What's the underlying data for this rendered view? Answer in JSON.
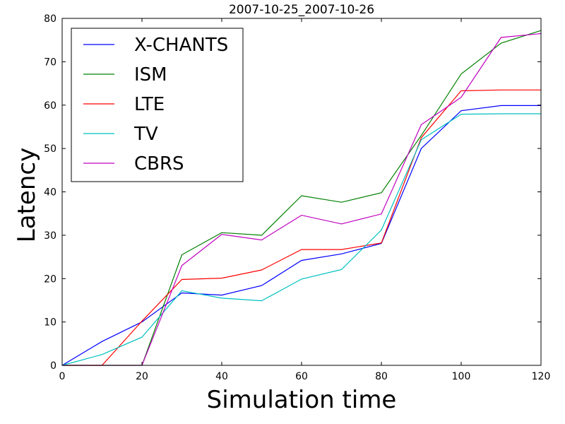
{
  "chart_data": {
    "type": "line",
    "title": "2007-10-25_2007-10-26",
    "xlabel": "Simulation time",
    "ylabel": "Latency",
    "xlim": [
      0,
      120
    ],
    "ylim": [
      0,
      80
    ],
    "xticks": [
      0,
      20,
      40,
      60,
      80,
      100,
      120
    ],
    "yticks": [
      0,
      10,
      20,
      30,
      40,
      50,
      60,
      70,
      80
    ],
    "grid": false,
    "legend_position": "top-left",
    "x": [
      0,
      10,
      20,
      30,
      40,
      50,
      60,
      70,
      80,
      90,
      100,
      110,
      120
    ],
    "series": [
      {
        "name": "X-CHANTS",
        "color": "#0000ff",
        "values": [
          0,
          5.5,
          10,
          16.7,
          16.2,
          18.4,
          24.2,
          25.7,
          28.1,
          50,
          58.7,
          59.9,
          59.9
        ]
      },
      {
        "name": "ISM",
        "color": "#008000",
        "values": [
          0,
          0,
          0,
          25.5,
          30.6,
          30,
          39.1,
          37.6,
          39.8,
          53,
          67.2,
          74.3,
          77.2
        ]
      },
      {
        "name": "LTE",
        "color": "#ff0000",
        "values": [
          0,
          0,
          10.2,
          19.8,
          20.1,
          22,
          26.7,
          26.7,
          28.2,
          52.5,
          63.3,
          63.5,
          63.5
        ]
      },
      {
        "name": "TV",
        "color": "#00bfbf",
        "values": [
          0,
          2.5,
          6.5,
          17.2,
          15.5,
          14.9,
          19.9,
          22.1,
          31.2,
          52,
          57.9,
          58,
          58
        ]
      },
      {
        "name": "CBRS",
        "color": "#bf00bf",
        "values": [
          0,
          0,
          0,
          23,
          30.2,
          28.9,
          34.6,
          32.6,
          34.9,
          55.5,
          61.8,
          75.6,
          76.5
        ]
      }
    ]
  }
}
